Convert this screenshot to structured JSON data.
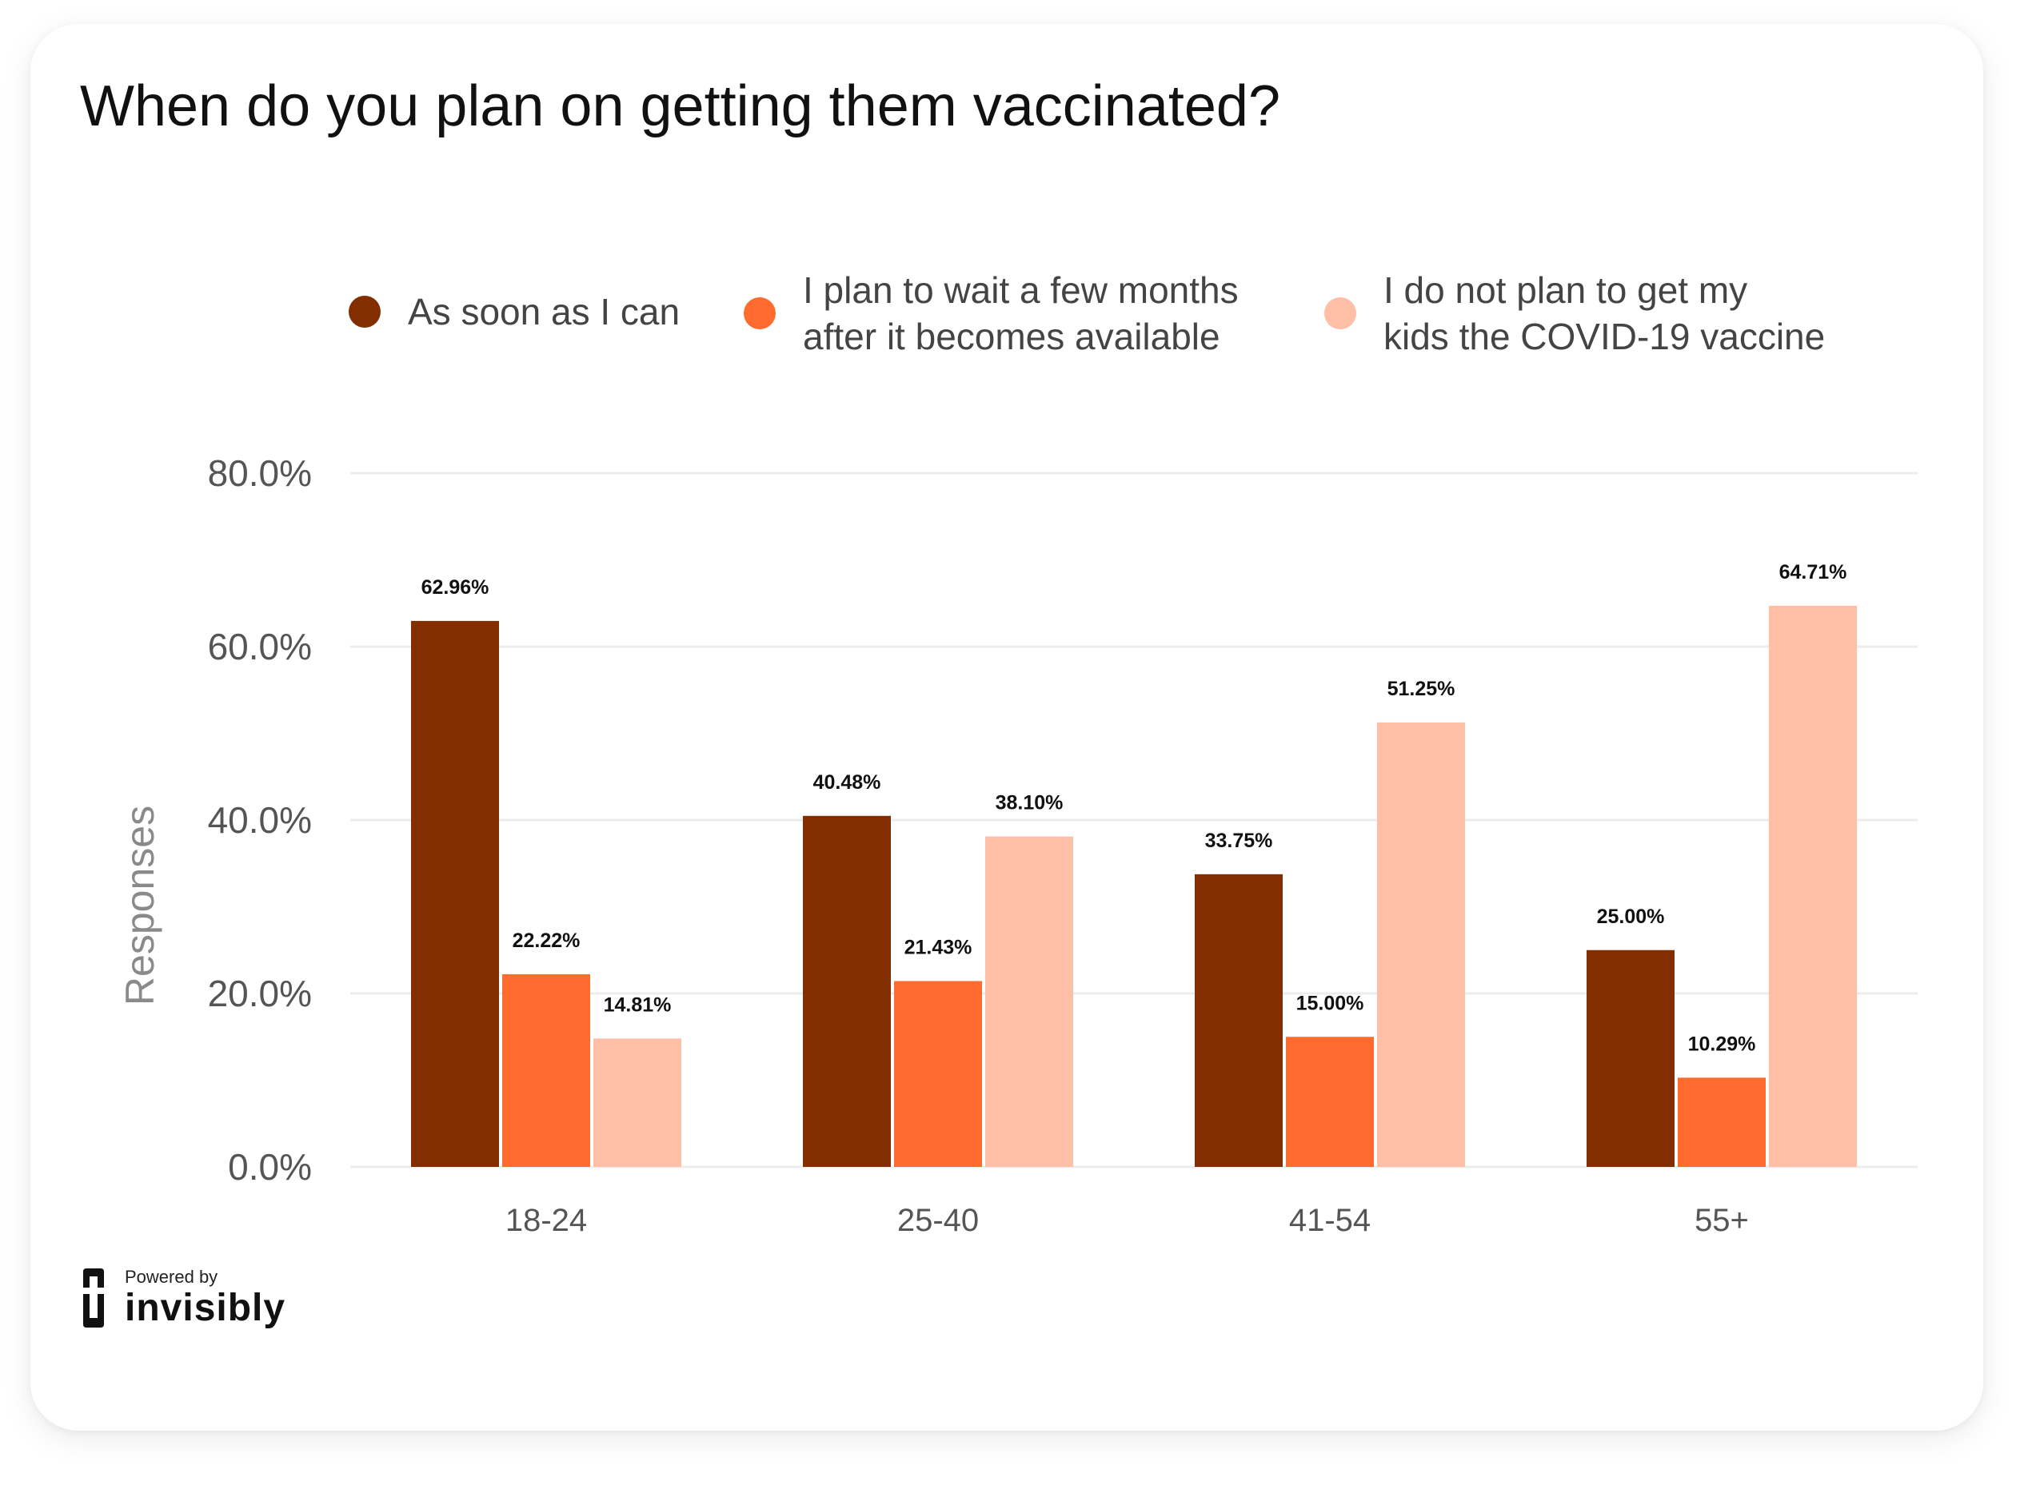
{
  "colors": {
    "series": [
      "#832e00",
      "#ff6b2e",
      "#ffbea6"
    ],
    "grid": "#ececec",
    "axis_text": "#555555",
    "value_text": "#111111",
    "ylabel_text": "#8a8a8a"
  },
  "title": "When do you plan on getting them vaccinated?",
  "legend": {
    "items": [
      {
        "label": "As soon as I can"
      },
      {
        "label": "I plan to wait a few months\nafter it becomes available"
      },
      {
        "label": "I do not plan to get my\nkids the COVID-19 vaccine"
      }
    ]
  },
  "branding": {
    "powered_by": "Powered by",
    "name": "invisibly",
    "icon": "invisibly-logo-icon"
  },
  "chart_data": {
    "type": "bar",
    "title": "When do you plan on getting them vaccinated?",
    "categories": [
      "18-24",
      "25-40",
      "41-54",
      "55+"
    ],
    "series": [
      {
        "name": "As soon as I can",
        "values": [
          62.96,
          40.48,
          33.75,
          25.0
        ],
        "labels": [
          "62.96%",
          "40.48%",
          "33.75%",
          "25.00%"
        ]
      },
      {
        "name": "I plan to wait a few months after it becomes available",
        "values": [
          22.22,
          21.43,
          15.0,
          10.29
        ],
        "labels": [
          "22.22%",
          "21.43%",
          "15.00%",
          "10.29%"
        ]
      },
      {
        "name": "I do not plan to get my kids the COVID-19 vaccine",
        "values": [
          14.81,
          38.1,
          51.25,
          64.71
        ],
        "labels": [
          "14.81%",
          "38.10%",
          "51.25%",
          "64.71%"
        ]
      }
    ],
    "xlabel": "",
    "ylabel": "Responses",
    "ylim": [
      0,
      80
    ],
    "yticks": [
      0,
      20,
      40,
      60,
      80
    ],
    "ytick_labels": [
      "0.0%",
      "20.0%",
      "40.0%",
      "60.0%",
      "80.0%"
    ],
    "grid": true,
    "legend_position": "top"
  }
}
